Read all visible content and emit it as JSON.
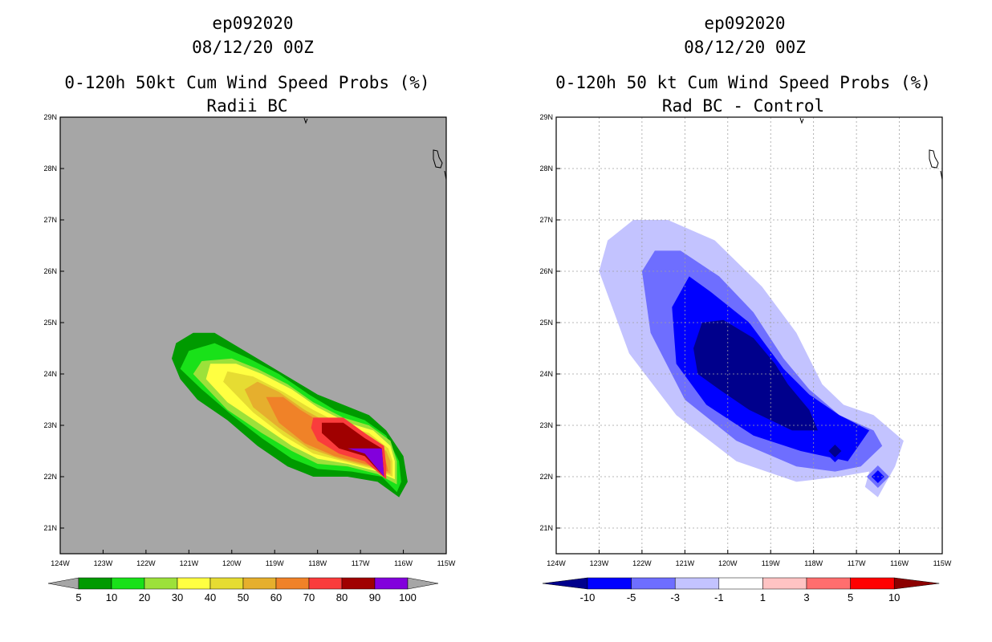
{
  "chart_data": [
    {
      "type": "filled-contour-map",
      "title_lines": [
        "ep092020",
        "08/12/20 00Z",
        "0-120h 50kt Cum Wind Speed Probs (%)",
        "Radii BC"
      ],
      "x_ticks": [
        "124W",
        "123W",
        "122W",
        "121W",
        "120W",
        "119W",
        "118W",
        "117W",
        "116W",
        "115W"
      ],
      "y_ticks": [
        "29N",
        "28N",
        "27N",
        "26N",
        "25N",
        "24N",
        "23N",
        "22N",
        "21N"
      ],
      "xlim": [
        -124,
        -115
      ],
      "ylim": [
        20.5,
        29
      ],
      "gridlines": false,
      "colorbar": {
        "labels": [
          "5",
          "10",
          "20",
          "30",
          "40",
          "50",
          "60",
          "70",
          "80",
          "90",
          "100"
        ],
        "colors": [
          "#a6a6a6",
          "#009a00",
          "#19e119",
          "#9ce13a",
          "#ffff41",
          "#e6dc32",
          "#e6af2d",
          "#f08228",
          "#fa3c3c",
          "#a00000",
          "#8200dc",
          "#a6a6a6"
        ]
      },
      "contours": [
        {
          "level": "5-10",
          "color": "#009a00",
          "points": [
            [
              -121.4,
              24.3
            ],
            [
              -121.3,
              24.6
            ],
            [
              -120.9,
              24.8
            ],
            [
              -120.4,
              24.8
            ],
            [
              -120.0,
              24.6
            ],
            [
              -119.4,
              24.3
            ],
            [
              -118.6,
              23.9
            ],
            [
              -118.0,
              23.6
            ],
            [
              -117.4,
              23.4
            ],
            [
              -116.8,
              23.2
            ],
            [
              -116.4,
              22.9
            ],
            [
              -116.0,
              22.4
            ],
            [
              -115.9,
              21.9
            ],
            [
              -116.1,
              21.6
            ],
            [
              -116.6,
              21.9
            ],
            [
              -117.3,
              22.0
            ],
            [
              -118.1,
              22.0
            ],
            [
              -118.7,
              22.2
            ],
            [
              -119.4,
              22.6
            ],
            [
              -120.1,
              23.1
            ],
            [
              -120.8,
              23.5
            ],
            [
              -121.2,
              23.9
            ]
          ]
        },
        {
          "level": "10-20",
          "color": "#19e119",
          "points": [
            [
              -121.2,
              24.1
            ],
            [
              -121.0,
              24.45
            ],
            [
              -120.4,
              24.6
            ],
            [
              -119.6,
              24.3
            ],
            [
              -118.9,
              24.0
            ],
            [
              -118.2,
              23.6
            ],
            [
              -117.6,
              23.3
            ],
            [
              -116.9,
              23.1
            ],
            [
              -116.4,
              22.8
            ],
            [
              -116.1,
              22.3
            ],
            [
              -116.05,
              21.9
            ],
            [
              -116.15,
              21.7
            ],
            [
              -116.5,
              22.0
            ],
            [
              -117.2,
              22.1
            ],
            [
              -118.0,
              22.15
            ],
            [
              -118.6,
              22.35
            ],
            [
              -119.3,
              22.75
            ],
            [
              -120.0,
              23.2
            ],
            [
              -120.7,
              23.7
            ]
          ]
        },
        {
          "level": "20-30",
          "color": "#9ce13a",
          "points": [
            [
              -120.9,
              24.0
            ],
            [
              -120.7,
              24.25
            ],
            [
              -120.0,
              24.3
            ],
            [
              -119.4,
              24.1
            ],
            [
              -118.7,
              23.8
            ],
            [
              -118.1,
              23.45
            ],
            [
              -117.4,
              23.15
            ],
            [
              -116.8,
              23.0
            ],
            [
              -116.3,
              22.7
            ],
            [
              -116.15,
              22.3
            ],
            [
              -116.15,
              21.85
            ],
            [
              -116.6,
              22.05
            ],
            [
              -117.3,
              22.2
            ],
            [
              -118.0,
              22.25
            ],
            [
              -118.6,
              22.5
            ],
            [
              -119.3,
              22.85
            ],
            [
              -120.1,
              23.3
            ]
          ]
        },
        {
          "level": "30-40",
          "color": "#ffff41",
          "points": [
            [
              -120.6,
              23.9
            ],
            [
              -120.5,
              24.2
            ],
            [
              -119.9,
              24.2
            ],
            [
              -119.3,
              24.0
            ],
            [
              -118.6,
              23.7
            ],
            [
              -118.0,
              23.35
            ],
            [
              -117.3,
              23.05
            ],
            [
              -116.7,
              22.9
            ],
            [
              -116.3,
              22.6
            ],
            [
              -116.2,
              22.3
            ],
            [
              -116.2,
              21.95
            ],
            [
              -116.6,
              22.1
            ],
            [
              -117.3,
              22.25
            ],
            [
              -118.0,
              22.35
            ],
            [
              -118.6,
              22.6
            ],
            [
              -119.3,
              23.0
            ],
            [
              -120.1,
              23.45
            ]
          ]
        },
        {
          "level": "40-50",
          "color": "#e6dc32",
          "points": [
            [
              -120.2,
              23.85
            ],
            [
              -120.1,
              24.05
            ],
            [
              -119.5,
              23.95
            ],
            [
              -118.8,
              23.65
            ],
            [
              -118.1,
              23.3
            ],
            [
              -117.4,
              23.0
            ],
            [
              -116.8,
              22.85
            ],
            [
              -116.35,
              22.55
            ],
            [
              -116.25,
              22.3
            ],
            [
              -116.25,
              22.0
            ],
            [
              -116.7,
              22.15
            ],
            [
              -117.4,
              22.3
            ],
            [
              -118.1,
              22.45
            ],
            [
              -118.8,
              22.8
            ],
            [
              -119.5,
              23.25
            ]
          ]
        },
        {
          "level": "50-60",
          "color": "#e6af2d",
          "points": [
            [
              -119.7,
              23.7
            ],
            [
              -119.4,
              23.85
            ],
            [
              -118.9,
              23.65
            ],
            [
              -118.3,
              23.3
            ],
            [
              -117.6,
              22.98
            ],
            [
              -116.9,
              22.8
            ],
            [
              -116.4,
              22.5
            ],
            [
              -116.3,
              22.3
            ],
            [
              -116.3,
              22.05
            ],
            [
              -116.8,
              22.2
            ],
            [
              -117.5,
              22.35
            ],
            [
              -118.2,
              22.55
            ],
            [
              -118.9,
              22.95
            ],
            [
              -119.5,
              23.35
            ]
          ]
        },
        {
          "level": "60-70",
          "color": "#f08228",
          "points": [
            [
              -119.2,
              23.55
            ],
            [
              -118.8,
              23.55
            ],
            [
              -118.4,
              23.3
            ],
            [
              -117.7,
              22.95
            ],
            [
              -117.0,
              22.75
            ],
            [
              -116.45,
              22.45
            ],
            [
              -116.35,
              22.1
            ],
            [
              -116.9,
              22.25
            ],
            [
              -117.6,
              22.4
            ],
            [
              -118.3,
              22.65
            ],
            [
              -118.9,
              23.05
            ]
          ]
        },
        {
          "level": "70-80",
          "color": "#fa3c3c",
          "points": [
            [
              -118.1,
              23.15
            ],
            [
              -117.4,
              23.15
            ],
            [
              -116.9,
              22.85
            ],
            [
              -116.45,
              22.6
            ],
            [
              -116.4,
              22.2
            ],
            [
              -116.4,
              21.95
            ],
            [
              -116.9,
              22.3
            ],
            [
              -117.5,
              22.45
            ],
            [
              -118.0,
              22.7
            ],
            [
              -118.15,
              22.95
            ]
          ]
        },
        {
          "level": "80-90",
          "color": "#a00000",
          "points": [
            [
              -117.9,
              23.05
            ],
            [
              -117.4,
              23.05
            ],
            [
              -116.9,
              22.75
            ],
            [
              -116.5,
              22.55
            ],
            [
              -116.45,
              22.0
            ],
            [
              -116.9,
              22.4
            ],
            [
              -117.5,
              22.55
            ],
            [
              -117.9,
              22.85
            ]
          ]
        },
        {
          "level": "90-100",
          "color": "#8200dc",
          "points": [
            [
              -117.3,
              22.55
            ],
            [
              -116.5,
              22.55
            ],
            [
              -116.45,
              22.0
            ],
            [
              -116.9,
              22.45
            ]
          ]
        }
      ]
    },
    {
      "type": "filled-contour-map",
      "title_lines": [
        "ep092020",
        "08/12/20 00Z",
        "0-120h 50 kt Cum Wind Speed Probs (%)",
        "Rad BC - Control"
      ],
      "x_ticks": [
        "124W",
        "123W",
        "122W",
        "121W",
        "120W",
        "119W",
        "118W",
        "117W",
        "116W",
        "115W"
      ],
      "y_ticks": [
        "29N",
        "28N",
        "27N",
        "26N",
        "25N",
        "24N",
        "23N",
        "22N",
        "21N"
      ],
      "xlim": [
        -124,
        -115
      ],
      "ylim": [
        20.5,
        29
      ],
      "gridlines": true,
      "colorbar": {
        "labels": [
          "-10",
          "-5",
          "-3",
          "-1",
          "1",
          "3",
          "5",
          "10"
        ],
        "colors": [
          "#00008c",
          "#0000ff",
          "#6e6eff",
          "#c3c3ff",
          "#ffffff",
          "#ffc3c3",
          "#ff6e6e",
          "#ff0000",
          "#8c0000"
        ]
      },
      "contours": [
        {
          "level": "-3 to -1",
          "color": "#c3c3ff",
          "points": [
            [
              -123.0,
              26.0
            ],
            [
              -122.8,
              26.6
            ],
            [
              -122.2,
              27.0
            ],
            [
              -121.4,
              27.0
            ],
            [
              -120.3,
              26.6
            ],
            [
              -119.2,
              25.7
            ],
            [
              -118.4,
              24.8
            ],
            [
              -117.8,
              23.8
            ],
            [
              -117.3,
              23.4
            ],
            [
              -116.6,
              23.2
            ],
            [
              -115.9,
              22.7
            ],
            [
              -116.1,
              22.2
            ],
            [
              -116.3,
              21.9
            ],
            [
              -116.5,
              21.6
            ],
            [
              -116.8,
              21.8
            ],
            [
              -116.7,
              22.1
            ],
            [
              -117.4,
              22.0
            ],
            [
              -118.4,
              21.9
            ],
            [
              -119.8,
              22.3
            ],
            [
              -121.2,
              23.2
            ],
            [
              -122.3,
              24.4
            ]
          ]
        },
        {
          "level": "-5 to -3",
          "color": "#6e6eff",
          "points": [
            [
              -122.0,
              26.0
            ],
            [
              -121.7,
              26.4
            ],
            [
              -121.1,
              26.4
            ],
            [
              -120.2,
              25.9
            ],
            [
              -119.4,
              25.2
            ],
            [
              -118.7,
              24.3
            ],
            [
              -118.1,
              23.7
            ],
            [
              -117.4,
              23.2
            ],
            [
              -116.6,
              22.9
            ],
            [
              -116.4,
              22.6
            ],
            [
              -116.9,
              22.2
            ],
            [
              -117.5,
              22.1
            ],
            [
              -118.4,
              22.2
            ],
            [
              -119.8,
              22.7
            ],
            [
              -121.0,
              23.5
            ],
            [
              -121.8,
              24.8
            ]
          ]
        },
        {
          "level": "-10 to -5",
          "color": "#0000ff",
          "points": [
            [
              -121.3,
              25.3
            ],
            [
              -120.9,
              25.9
            ],
            [
              -120.4,
              25.6
            ],
            [
              -119.5,
              25.0
            ],
            [
              -118.7,
              24.1
            ],
            [
              -118.1,
              23.6
            ],
            [
              -117.4,
              23.2
            ],
            [
              -116.7,
              22.9
            ],
            [
              -117.2,
              22.3
            ],
            [
              -118.3,
              22.5
            ],
            [
              -119.4,
              22.8
            ],
            [
              -120.5,
              23.4
            ],
            [
              -121.2,
              24.2
            ]
          ]
        },
        {
          "level": "< -10",
          "color": "#00008c",
          "points": [
            [
              -120.8,
              24.5
            ],
            [
              -120.6,
              25.0
            ],
            [
              -120.1,
              25.05
            ],
            [
              -119.4,
              24.7
            ],
            [
              -118.9,
              24.2
            ],
            [
              -118.6,
              23.8
            ],
            [
              -118.1,
              23.3
            ],
            [
              -117.9,
              22.9
            ],
            [
              -118.5,
              22.9
            ],
            [
              -119.5,
              23.3
            ],
            [
              -120.2,
              23.7
            ],
            [
              -120.7,
              24.0
            ]
          ]
        }
      ],
      "spots": [
        {
          "lon": -117.5,
          "lat": 22.5,
          "color": "#00008c",
          "ring_color": "#0000ff"
        },
        {
          "lon": -116.5,
          "lat": 22.0,
          "color": "#0000ff",
          "ring_color": "#6e6eff"
        }
      ]
    }
  ]
}
